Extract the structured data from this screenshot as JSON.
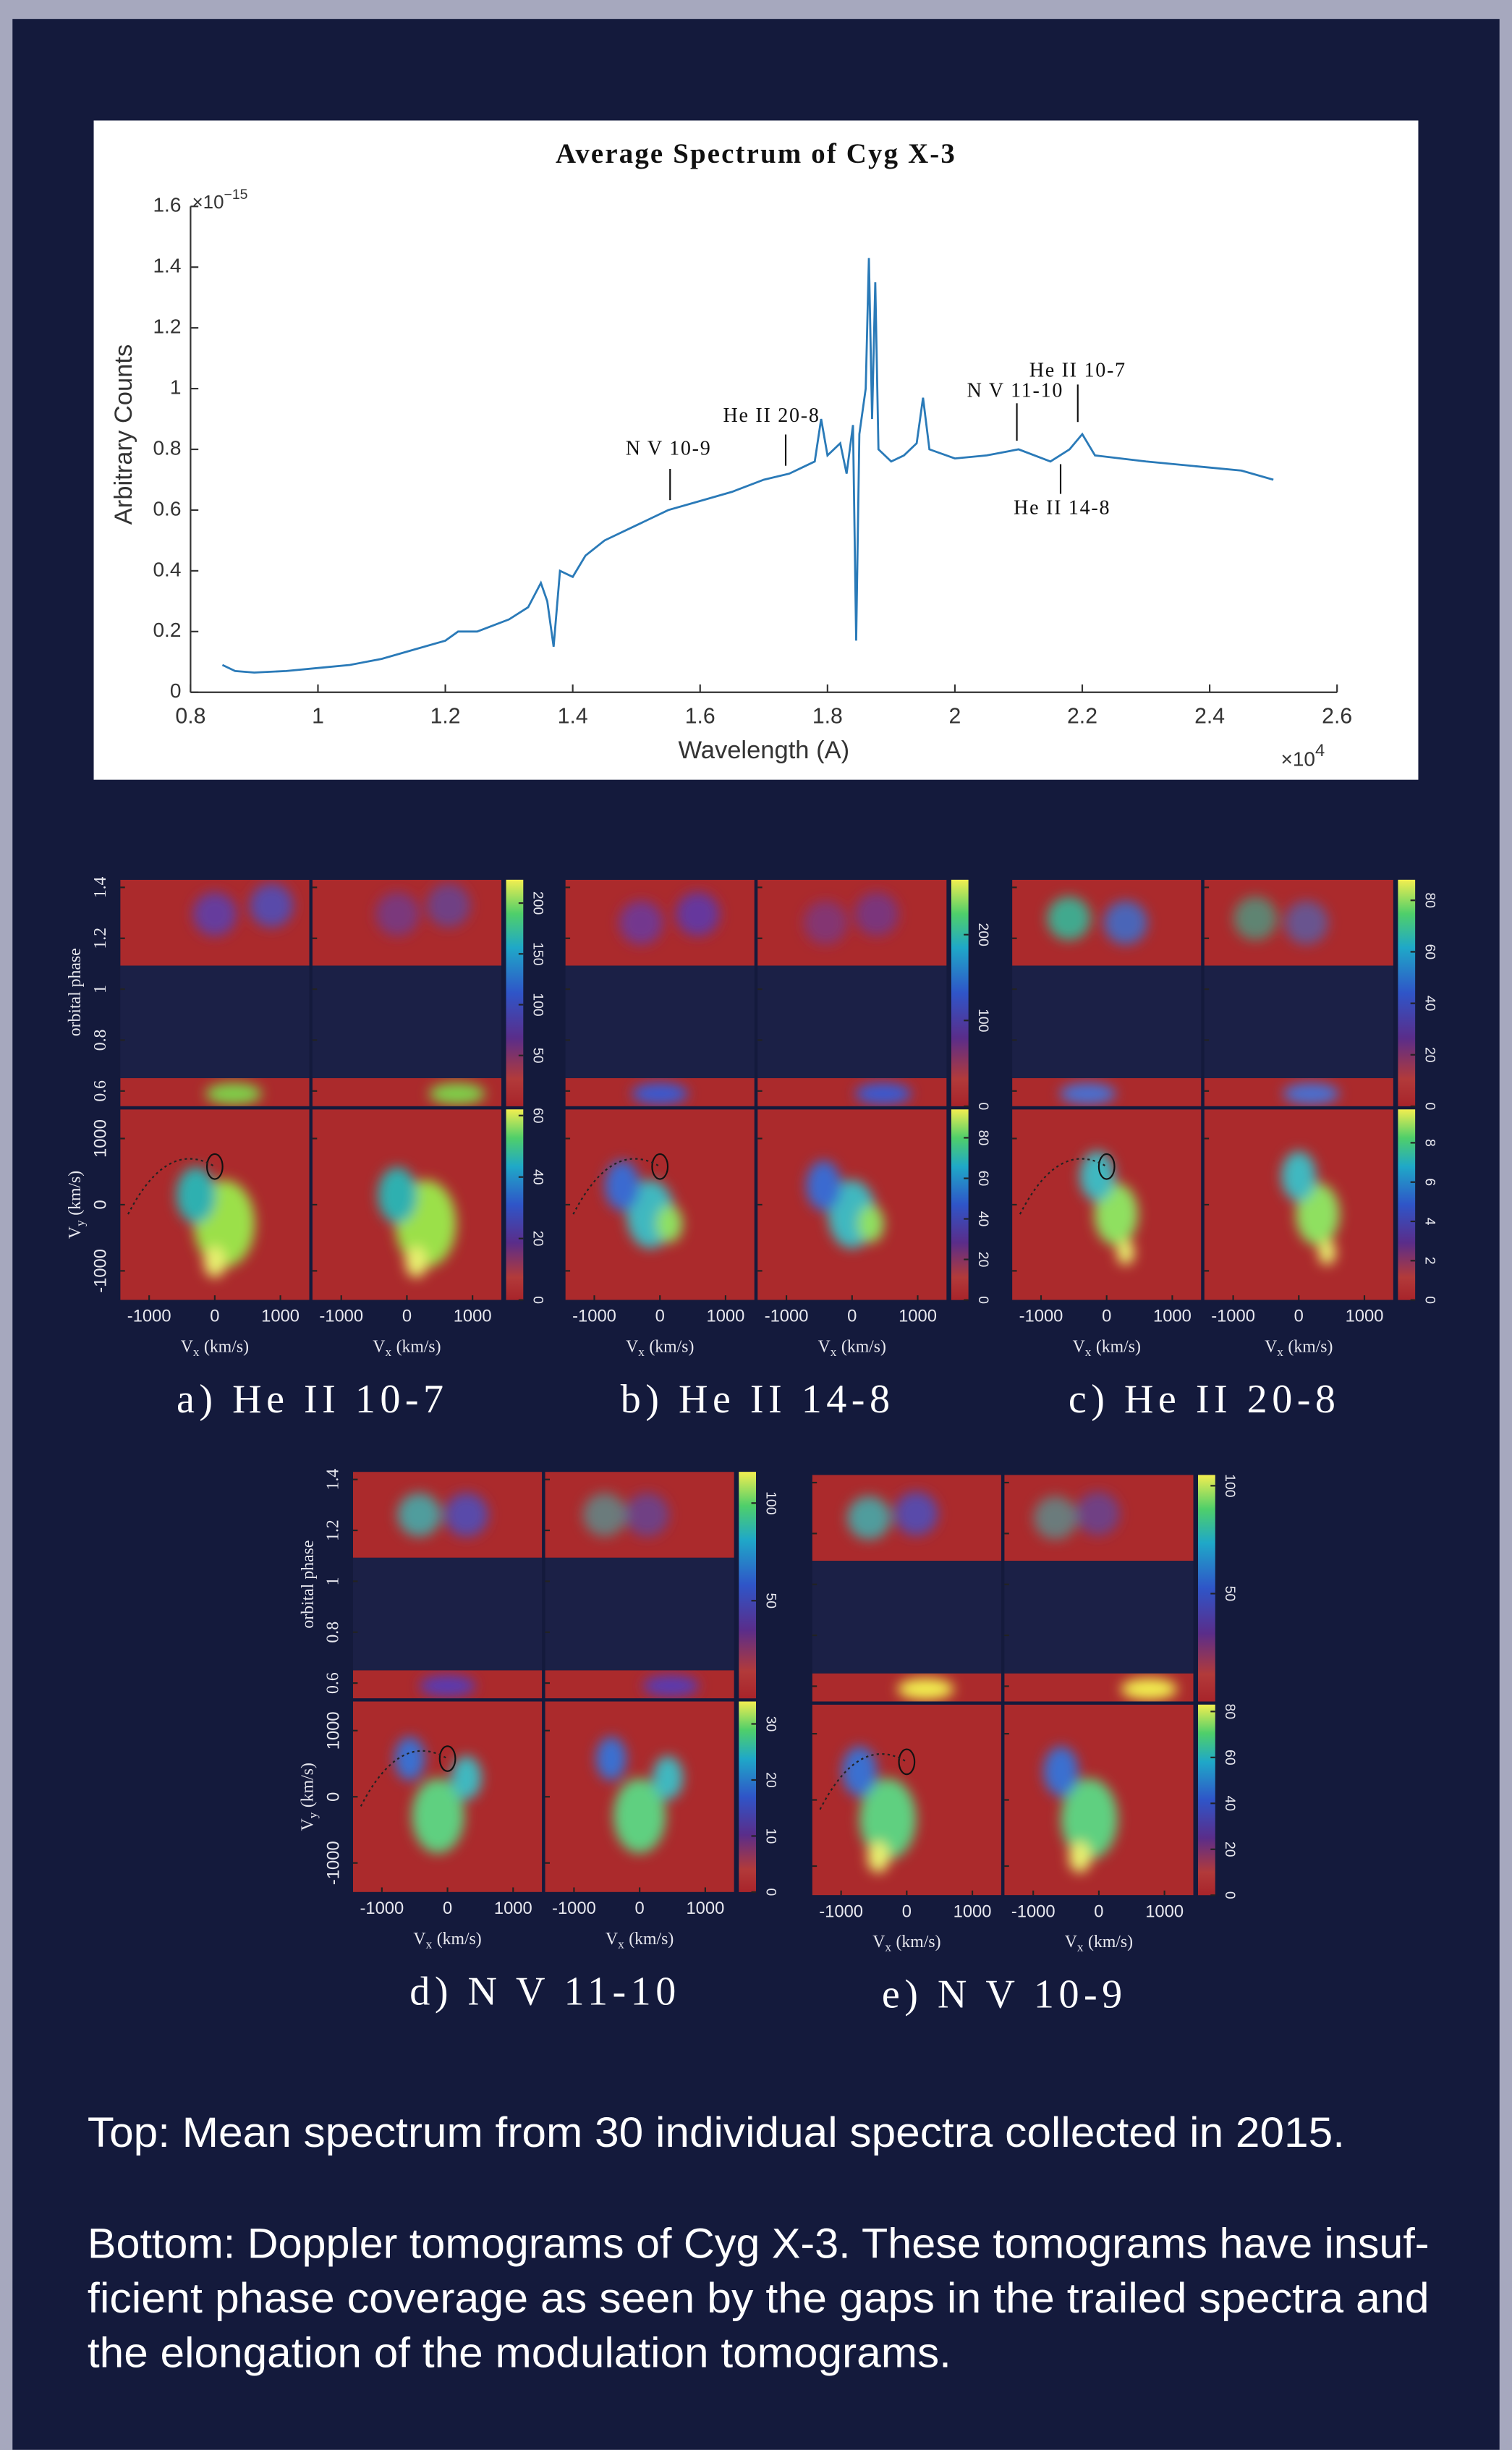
{
  "chart_data": {
    "type": "line",
    "title": "Average Spectrum of Cyg X-3",
    "x_label": "Wavelength (A)",
    "y_label": "Arbitrary Counts",
    "x_scale": {
      "base": "×10",
      "exponent": "4"
    },
    "y_scale": {
      "base": "×10",
      "exponent": "−15"
    },
    "x": [
      0.85,
      0.87,
      0.9,
      0.95,
      1.0,
      1.05,
      1.1,
      1.15,
      1.2,
      1.22,
      1.25,
      1.3,
      1.33,
      1.35,
      1.36,
      1.37,
      1.38,
      1.4,
      1.42,
      1.45,
      1.5,
      1.55,
      1.6,
      1.65,
      1.7,
      1.74,
      1.76,
      1.78,
      1.79,
      1.8,
      1.82,
      1.83,
      1.84,
      1.845,
      1.85,
      1.86,
      1.865,
      1.87,
      1.875,
      1.88,
      1.9,
      1.92,
      1.94,
      1.95,
      1.96,
      2.0,
      2.05,
      2.1,
      2.15,
      2.18,
      2.2,
      2.22,
      2.3,
      2.4,
      2.45,
      2.5
    ],
    "series": [
      {
        "color": "#2a7ab8",
        "values": [
          0.09,
          0.07,
          0.065,
          0.07,
          0.08,
          0.09,
          0.11,
          0.14,
          0.17,
          0.2,
          0.2,
          0.24,
          0.28,
          0.36,
          0.3,
          0.15,
          0.4,
          0.38,
          0.45,
          0.5,
          0.55,
          0.6,
          0.63,
          0.66,
          0.7,
          0.72,
          0.74,
          0.76,
          0.9,
          0.78,
          0.82,
          0.72,
          0.88,
          0.17,
          0.85,
          1.0,
          1.43,
          0.9,
          1.35,
          0.8,
          0.76,
          0.78,
          0.82,
          0.97,
          0.8,
          0.77,
          0.78,
          0.8,
          0.76,
          0.8,
          0.85,
          0.78,
          0.76,
          0.74,
          0.73,
          0.7
        ]
      }
    ],
    "xlim": [
      0.8,
      2.6
    ],
    "xticks": [
      0.8,
      1,
      1.2,
      1.4,
      1.6,
      1.8,
      2,
      2.2,
      2.4,
      2.6
    ],
    "ylim": [
      0,
      1.6
    ],
    "yticks": [
      0,
      0.2,
      0.4,
      0.6,
      0.8,
      1,
      1.2,
      1.4,
      1.6
    ],
    "annotations": [
      "N V 10-9",
      "He II 20-8",
      "N V 11-10",
      "He II 10-7",
      "He II 14-8"
    ]
  },
  "tomograms": {
    "phase_label": "orbital phase",
    "phase_ticks": [
      0.6,
      0.8,
      1,
      1.2,
      1.4
    ],
    "phase_lim": [
      0.54,
      1.43
    ],
    "velocity_ticks": [
      -1000,
      0,
      1000
    ],
    "velocity_lim": [
      -1440,
      1440
    ],
    "vx_label": {
      "symbol": "V",
      "subscript": "x",
      "unit": "(km/s)"
    },
    "vy_label": {
      "symbol": "V",
      "subscript": "y",
      "unit": "(km/s)"
    },
    "panels": [
      {
        "caption": "a) He II 10-7",
        "trail_colorbar": {
          "lim": [
            0,
            223
          ],
          "ticks": [
            50,
            100,
            150,
            200
          ]
        },
        "map_colorbar": {
          "lim": [
            0,
            62
          ],
          "ticks": [
            0,
            20,
            40,
            60
          ]
        }
      },
      {
        "caption": "b) He II 14-8",
        "trail_colorbar": {
          "lim": [
            0,
            264
          ],
          "ticks": [
            0,
            100,
            200
          ]
        },
        "map_colorbar": {
          "lim": [
            0,
            94
          ],
          "ticks": [
            0,
            20,
            40,
            60,
            80
          ]
        }
      },
      {
        "caption": "c) He II 20-8",
        "trail_colorbar": {
          "lim": [
            0,
            88
          ],
          "ticks": [
            0,
            20,
            40,
            60,
            80
          ]
        },
        "map_colorbar": {
          "lim": [
            0,
            9.7
          ],
          "ticks": [
            0,
            2,
            4,
            6,
            8
          ]
        }
      },
      {
        "caption": "d) N V 11-10",
        "trail_colorbar": {
          "lim": [
            0,
            116
          ],
          "ticks": [
            50,
            100
          ]
        },
        "map_colorbar": {
          "lim": [
            0,
            34
          ],
          "ticks": [
            0,
            10,
            20,
            30
          ]
        }
      },
      {
        "caption": "e) N V 10-9",
        "trail_colorbar": {
          "lim": [
            0,
            105
          ],
          "ticks": [
            50,
            100
          ]
        },
        "map_colorbar": {
          "lim": [
            0,
            83
          ],
          "ticks": [
            0,
            20,
            40,
            60,
            80
          ]
        }
      }
    ]
  },
  "caption": {
    "top": "Top: Mean spectrum from 30 individual spectra collected in 2015.",
    "bottom": [
      "Bottom: Doppler tomograms of Cyg X-3. These tomograms have insuf-",
      "ficient phase coverage as seen by the gaps in the trailed spectra and",
      "the elongation of the modulation tomograms."
    ]
  }
}
